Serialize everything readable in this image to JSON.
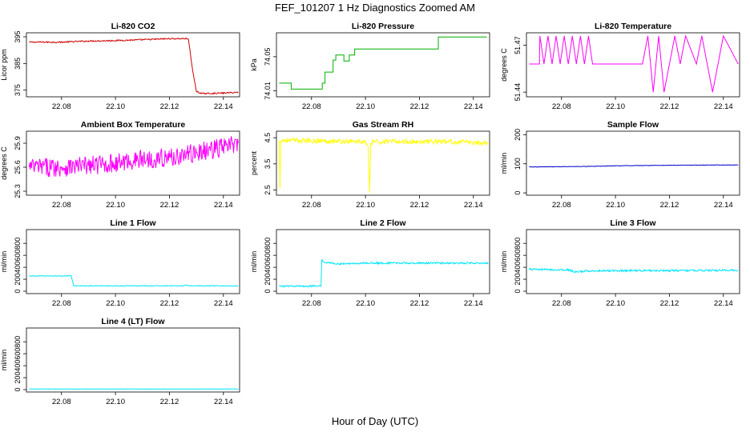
{
  "figure": {
    "title": "FEF_101207  1 Hz Diagnostics Zoomed AM",
    "xlabel": "Hour of Day (UTC)"
  },
  "chart_data": [
    {
      "type": "line",
      "title": "Li-820 CO2",
      "ylabel": "Licor ppm",
      "color": "#d00000",
      "xlim": [
        22.067,
        22.146
      ],
      "ylim": [
        372.5,
        396.5
      ],
      "xticks": [
        "22.08",
        "22.10",
        "22.12",
        "22.14"
      ],
      "yticks": [
        "375",
        "385",
        "395"
      ],
      "series": [
        {
          "x": [
            22.068,
            22.08,
            22.09,
            22.1,
            22.11,
            22.12,
            22.127,
            22.1285,
            22.13,
            22.132,
            22.14,
            22.1455
          ],
          "y": [
            393.0,
            393.0,
            393.4,
            393.6,
            393.9,
            394.3,
            394.3,
            383.0,
            374.5,
            373.7,
            373.9,
            374.2
          ],
          "noise": 0.25
        }
      ]
    },
    {
      "type": "line",
      "title": "Li-820 Pressure",
      "ylabel": "kPa",
      "color": "#00b000",
      "step": true,
      "xlim": [
        22.067,
        22.146
      ],
      "ylim": [
        74.003,
        74.078
      ],
      "xticks": [
        "22.08",
        "22.10",
        "22.12",
        "22.14"
      ],
      "yticks": [
        "74.01",
        "74.05"
      ],
      "series": [
        {
          "x": [
            22.068,
            22.0715,
            22.0725,
            22.084,
            22.085,
            22.088,
            22.089,
            22.092,
            22.094,
            22.096,
            22.1,
            22.126,
            22.127,
            22.145
          ],
          "y": [
            74.019,
            74.019,
            74.012,
            74.019,
            74.032,
            74.046,
            74.052,
            74.045,
            74.052,
            74.059,
            74.059,
            74.059,
            74.073,
            74.073
          ],
          "noise": 0
        }
      ]
    },
    {
      "type": "line",
      "title": "Li-820 Temperature",
      "ylabel": "degrees C",
      "color": "#ff00ff",
      "xlim": [
        22.067,
        22.146
      ],
      "ylim": [
        51.437,
        51.478
      ],
      "xticks": [
        "22.08",
        "22.10",
        "22.12",
        "22.14"
      ],
      "yticks": [
        "51.44",
        "51.47"
      ],
      "series": [
        {
          "x": [
            22.068,
            22.0718,
            22.072,
            22.0735,
            22.075,
            22.0765,
            22.078,
            22.0795,
            22.081,
            22.0825,
            22.084,
            22.0855,
            22.087,
            22.0885,
            22.09,
            22.0915,
            22.093,
            22.11,
            22.112,
            22.114,
            22.116,
            22.118,
            22.12,
            22.122,
            22.124,
            22.126,
            22.13,
            22.132,
            22.134,
            22.136,
            22.138,
            22.14,
            22.1455
          ],
          "y": [
            51.458,
            51.458,
            51.476,
            51.458,
            51.476,
            51.458,
            51.476,
            51.458,
            51.476,
            51.458,
            51.476,
            51.458,
            51.476,
            51.458,
            51.476,
            51.458,
            51.458,
            51.458,
            51.476,
            51.44,
            51.476,
            51.44,
            51.458,
            51.476,
            51.458,
            51.476,
            51.458,
            51.476,
            51.458,
            51.44,
            51.458,
            51.476,
            51.458
          ],
          "noise": 0
        }
      ]
    },
    {
      "type": "line",
      "title": "Ambient Box Temperature",
      "ylabel": "degrees C",
      "color": "#ff00ff",
      "xlim": [
        22.067,
        22.146
      ],
      "ylim": [
        25.25,
        26.05
      ],
      "xticks": [
        "22.08",
        "22.10",
        "22.12",
        "22.14"
      ],
      "yticks": [
        "25.3",
        "25.6",
        "25.9"
      ],
      "series": [
        {
          "x": [
            22.068,
            22.08,
            22.09,
            22.1,
            22.11,
            22.12,
            22.13,
            22.14,
            22.1455
          ],
          "y": [
            25.6,
            25.6,
            25.62,
            25.65,
            25.7,
            25.72,
            25.78,
            25.85,
            25.9
          ],
          "noise": 0.12
        }
      ]
    },
    {
      "type": "line",
      "title": "Gas Stream RH",
      "ylabel": "percent",
      "color": "#ffff00",
      "xlim": [
        22.067,
        22.146
      ],
      "ylim": [
        2.3,
        4.75
      ],
      "xticks": [
        "22.08",
        "22.10",
        "22.12",
        "22.14"
      ],
      "yticks": [
        "2.5",
        "3.5",
        "4.5"
      ],
      "series": [
        {
          "x": [
            22.068,
            22.0683,
            22.0686,
            22.07,
            22.1,
            22.101,
            22.1015,
            22.102,
            22.103,
            22.13,
            22.1455
          ],
          "y": [
            4.4,
            2.55,
            4.4,
            4.4,
            4.35,
            4.1,
            2.4,
            4.3,
            4.35,
            4.35,
            4.3
          ],
          "noise": 0.09
        }
      ]
    },
    {
      "type": "line",
      "title": "Sample Flow",
      "ylabel": "ml/min",
      "color": "#0000cc",
      "xlim": [
        22.067,
        22.146
      ],
      "ylim": [
        -8,
        212
      ],
      "xticks": [
        "22.08",
        "22.10",
        "22.12",
        "22.14"
      ],
      "yticks": [
        "0",
        "100",
        "200"
      ],
      "series": [
        {
          "x": [
            22.068,
            22.09,
            22.1,
            22.12,
            22.1455
          ],
          "y": [
            89,
            91,
            93,
            95,
            96
          ],
          "noise": 0.8
        }
      ]
    },
    {
      "type": "line",
      "title": "Line 1 Flow",
      "ylabel": "ml/min",
      "color": "#00e5ff",
      "xlim": [
        22.067,
        22.146
      ],
      "ylim": [
        -40,
        1030
      ],
      "xticks": [
        "22.08",
        "22.10",
        "22.12",
        "22.14"
      ],
      "yticks": [
        "0",
        "200",
        "400",
        "600",
        "800"
      ],
      "series": [
        {
          "x": [
            22.068,
            22.0825,
            22.0835,
            22.0845,
            22.1,
            22.125,
            22.126,
            22.127,
            22.1455
          ],
          "y": [
            255,
            255,
            265,
            90,
            90,
            90,
            105,
            90,
            90
          ],
          "noise": 6
        }
      ]
    },
    {
      "type": "line",
      "title": "Line 2 Flow",
      "ylabel": "ml/min",
      "color": "#00e5ff",
      "xlim": [
        22.067,
        22.146
      ],
      "ylim": [
        -40,
        1030
      ],
      "xticks": [
        "22.08",
        "22.10",
        "22.12",
        "22.14"
      ],
      "yticks": [
        "0",
        "200",
        "400",
        "600",
        "800"
      ],
      "series": [
        {
          "x": [
            22.068,
            22.0835,
            22.0838,
            22.0845,
            22.09,
            22.1,
            22.12,
            22.1455
          ],
          "y": [
            85,
            85,
            520,
            490,
            455,
            470,
            470,
            470
          ],
          "noise": 14
        }
      ]
    },
    {
      "type": "line",
      "title": "Line 3 Flow",
      "ylabel": "ml/min",
      "color": "#00e5ff",
      "xlim": [
        22.067,
        22.146
      ],
      "ylim": [
        -40,
        1030
      ],
      "xticks": [
        "22.08",
        "22.10",
        "22.12",
        "22.14"
      ],
      "yticks": [
        "0",
        "200",
        "400",
        "600",
        "800"
      ],
      "series": [
        {
          "x": [
            22.068,
            22.083,
            22.085,
            22.09,
            22.1,
            22.12,
            22.1455
          ],
          "y": [
            365,
            355,
            320,
            340,
            345,
            345,
            350
          ],
          "noise": 16
        }
      ]
    },
    {
      "type": "line",
      "title": "Line 4 (LT) Flow",
      "ylabel": "ml/min",
      "color": "#00e5ff",
      "xlim": [
        22.067,
        22.146
      ],
      "ylim": [
        -40,
        1030
      ],
      "xticks": [
        "22.08",
        "22.10",
        "22.12",
        "22.14"
      ],
      "yticks": [
        "0",
        "200",
        "400",
        "600",
        "800"
      ],
      "series": [
        {
          "x": [
            22.068,
            22.1,
            22.1455
          ],
          "y": [
            10,
            10,
            10
          ],
          "noise": 3
        }
      ]
    }
  ]
}
